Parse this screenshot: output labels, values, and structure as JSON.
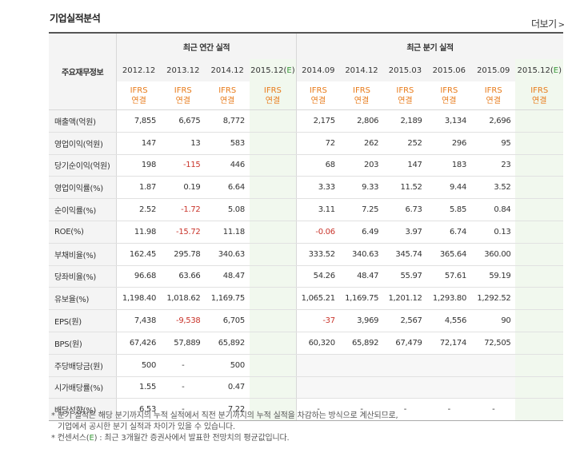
{
  "header": {
    "title": "기업실적분석",
    "more_label": "더보기",
    "more_icon": "chevron-right-icon"
  },
  "table": {
    "row_header_label": "주요재무정보",
    "group_annual": "최근 연간 실적",
    "group_quarter": "최근 분기 실적",
    "periods": [
      "2012.12",
      "2013.12",
      "2014.12",
      "2015.12(E)",
      "2014.09",
      "2014.12",
      "2015.03",
      "2015.06",
      "2015.09",
      "2015.12(E)"
    ],
    "basis_top": "IFRS",
    "basis_bottom": "연결",
    "rows": [
      {
        "label": "매출액(억원)",
        "values": [
          "7,855",
          "6,675",
          "8,772",
          "",
          "2,175",
          "2,806",
          "2,189",
          "3,134",
          "2,696",
          ""
        ]
      },
      {
        "label": "영업이익(억원)",
        "values": [
          "147",
          "13",
          "583",
          "",
          "72",
          "262",
          "252",
          "296",
          "95",
          ""
        ]
      },
      {
        "label": "당기순이익(억원)",
        "values": [
          "198",
          "-115",
          "446",
          "",
          "68",
          "203",
          "147",
          "183",
          "23",
          ""
        ]
      },
      {
        "label": "영업이익률(%)",
        "values": [
          "1.87",
          "0.19",
          "6.64",
          "",
          "3.33",
          "9.33",
          "11.52",
          "9.44",
          "3.52",
          ""
        ]
      },
      {
        "label": "순이익률(%)",
        "values": [
          "2.52",
          "-1.72",
          "5.08",
          "",
          "3.11",
          "7.25",
          "6.73",
          "5.85",
          "0.84",
          ""
        ]
      },
      {
        "label": "ROE(%)",
        "values": [
          "11.98",
          "-15.72",
          "11.18",
          "",
          "-0.06",
          "6.49",
          "3.97",
          "6.74",
          "0.13",
          ""
        ]
      },
      {
        "label": "부채비율(%)",
        "values": [
          "162.45",
          "295.78",
          "340.63",
          "",
          "333.52",
          "340.63",
          "345.74",
          "365.64",
          "360.00",
          ""
        ]
      },
      {
        "label": "당좌비율(%)",
        "values": [
          "96.68",
          "63.66",
          "48.47",
          "",
          "54.26",
          "48.47",
          "55.97",
          "57.61",
          "59.19",
          ""
        ]
      },
      {
        "label": "유보율(%)",
        "values": [
          "1,198.40",
          "1,018.62",
          "1,169.75",
          "",
          "1,065.21",
          "1,169.75",
          "1,201.12",
          "1,293.80",
          "1,292.52",
          ""
        ]
      },
      {
        "label": "EPS(원)",
        "values": [
          "7,438",
          "-9,538",
          "6,705",
          "",
          "-37",
          "3,969",
          "2,567",
          "4,556",
          "90",
          ""
        ]
      },
      {
        "label": "BPS(원)",
        "values": [
          "67,426",
          "57,889",
          "65,892",
          "",
          "60,320",
          "65,892",
          "67,479",
          "72,174",
          "72,505",
          ""
        ]
      },
      {
        "label": "주당배당금(원)",
        "values": [
          "500",
          "-",
          "500",
          "",
          "",
          "",
          "",
          "",
          "",
          ""
        ]
      },
      {
        "label": "시가배당률(%)",
        "values": [
          "1.55",
          "-",
          "0.47",
          "",
          "",
          "",
          "",
          "",
          "",
          ""
        ]
      },
      {
        "label": "배당성향(%)",
        "values": [
          "6.53",
          "-",
          "7.22",
          "",
          "-",
          "-",
          "-",
          "-",
          "-",
          ""
        ]
      }
    ]
  },
  "notes": {
    "line1": "* 분기 실적은 해당 분기까지의 누적 실적에서 직전 분기까지의 누적 실적을 차감하는 방식으로 계산되므로,",
    "line2": "기업에서 공시한 분기 실적과 차이가 있을 수 있습니다.",
    "line3_prefix": "* 컨센서스(",
    "line3_e": "E",
    "line3_suffix": ") : 최근 3개월간 증권사에서 발표한 전망치의 평균값입니다."
  },
  "colors": {
    "ifrs": "#e87b1a",
    "negative": "#c9342b",
    "estimate_bg": "#f1f8ee",
    "estimate_mark": "#3a9a3a"
  }
}
